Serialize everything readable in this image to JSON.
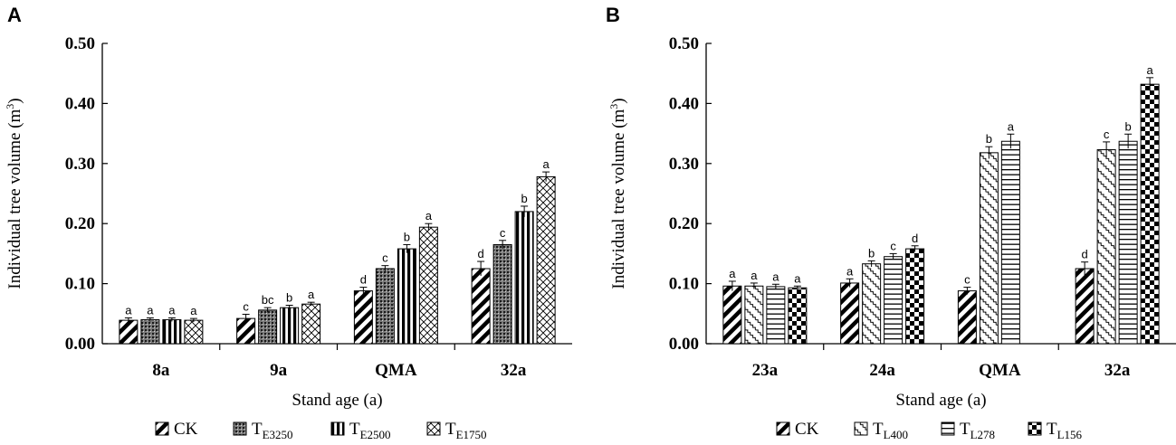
{
  "chart_data": [
    {
      "panel": "A",
      "type": "bar",
      "title": "",
      "xlabel": "Stand age (a)",
      "ylabel": "Individual tree volume (m",
      "ylabel_sup": "3",
      "ylabel_close": ")",
      "ylim": [
        0,
        0.5
      ],
      "yticks": [
        "0.00",
        "0.10",
        "0.20",
        "0.30",
        "0.40",
        "0.50"
      ],
      "categories": [
        "8a",
        "9a",
        "QMA",
        "32a"
      ],
      "legend_position": "bottom",
      "series": [
        {
          "name": "CK",
          "sub": "",
          "pattern": "diag",
          "values": [
            0.039,
            0.042,
            0.088,
            0.125
          ],
          "errors": [
            0.004,
            0.007,
            0.006,
            0.012
          ],
          "letters": [
            "a",
            "c",
            "d",
            "d"
          ]
        },
        {
          "name": "T",
          "sub": "E3250",
          "pattern": "dots",
          "values": [
            0.04,
            0.056,
            0.125,
            0.165
          ],
          "errors": [
            0.003,
            0.004,
            0.005,
            0.007
          ],
          "letters": [
            "a",
            "bc",
            "c",
            "c"
          ]
        },
        {
          "name": "T",
          "sub": "E2500",
          "pattern": "vert",
          "values": [
            0.04,
            0.06,
            0.158,
            0.22
          ],
          "errors": [
            0.003,
            0.004,
            0.007,
            0.009
          ],
          "letters": [
            "a",
            "b",
            "b",
            "b"
          ]
        },
        {
          "name": "T",
          "sub": "E1750",
          "pattern": "lattice",
          "values": [
            0.039,
            0.066,
            0.194,
            0.278
          ],
          "errors": [
            0.003,
            0.003,
            0.006,
            0.008
          ],
          "letters": [
            "a",
            "a",
            "a",
            "a"
          ]
        }
      ]
    },
    {
      "panel": "B",
      "type": "bar",
      "title": "",
      "xlabel": "Stand age (a)",
      "ylabel": "Individual tree volume (m",
      "ylabel_sup": "3",
      "ylabel_close": ")",
      "ylim": [
        0,
        0.5
      ],
      "yticks": [
        "0.00",
        "0.10",
        "0.20",
        "0.30",
        "0.40",
        "0.50"
      ],
      "categories": [
        "23a",
        "24a",
        "QMA",
        "32a"
      ],
      "legend_position": "bottom",
      "series": [
        {
          "name": "CK",
          "sub": "",
          "pattern": "diag",
          "values": [
            0.096,
            0.101,
            0.088,
            0.125
          ],
          "errors": [
            0.008,
            0.007,
            0.006,
            0.011
          ],
          "letters": [
            "a",
            "a",
            "c",
            "d"
          ]
        },
        {
          "name": "T",
          "sub": "L400",
          "pattern": "zigzag",
          "values": [
            0.096,
            0.133,
            0.318,
            0.323
          ],
          "errors": [
            0.005,
            0.005,
            0.01,
            0.013
          ],
          "letters": [
            "a",
            "b",
            "b",
            "c"
          ]
        },
        {
          "name": "T",
          "sub": "L278",
          "pattern": "horiz",
          "values": [
            0.095,
            0.145,
            0.337,
            0.337
          ],
          "errors": [
            0.004,
            0.005,
            0.012,
            0.012
          ],
          "letters": [
            "a",
            "c",
            "a",
            "b"
          ]
        },
        {
          "name": "T",
          "sub": "L156",
          "pattern": "checker",
          "values": [
            0.093,
            0.158,
            null,
            0.432
          ],
          "errors": [
            0.003,
            0.005,
            null,
            0.011
          ],
          "letters": [
            "a",
            "d",
            null,
            "a"
          ]
        }
      ]
    }
  ]
}
